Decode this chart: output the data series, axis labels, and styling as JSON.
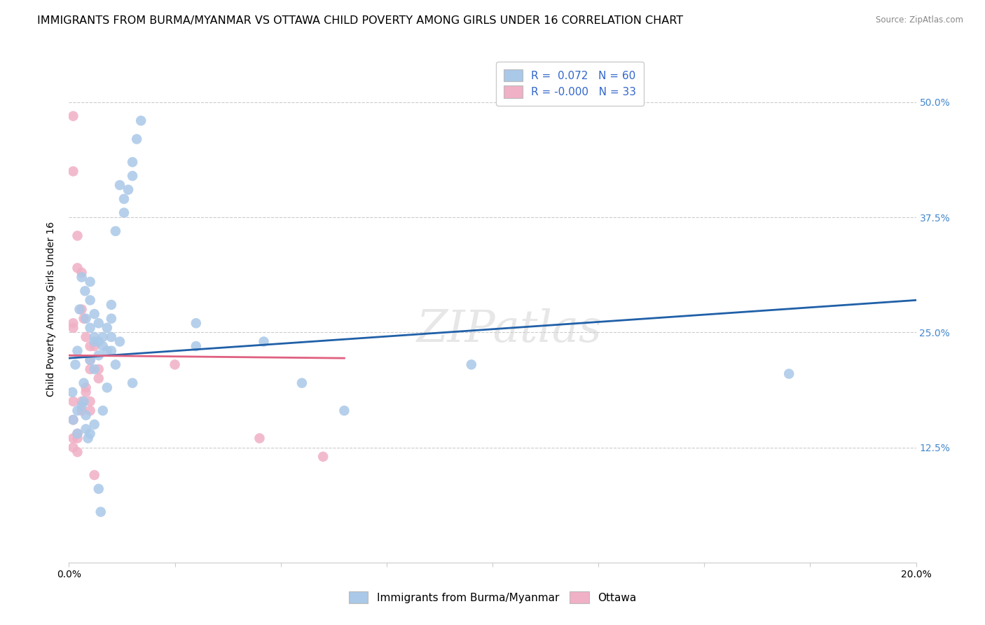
{
  "title": "IMMIGRANTS FROM BURMA/MYANMAR VS OTTAWA CHILD POVERTY AMONG GIRLS UNDER 16 CORRELATION CHART",
  "source": "Source: ZipAtlas.com",
  "ylabel": "Child Poverty Among Girls Under 16",
  "legend_label_blue": "Immigrants from Burma/Myanmar",
  "legend_label_pink": "Ottawa",
  "r_blue": 0.072,
  "n_blue": 60,
  "r_pink": -0.0,
  "n_pink": 33,
  "xlim": [
    0.0,
    0.2
  ],
  "ylim": [
    0.0,
    0.55
  ],
  "yticks": [
    0.0,
    0.125,
    0.25,
    0.375,
    0.5
  ],
  "ytick_labels": [
    "",
    "12.5%",
    "25.0%",
    "37.5%",
    "50.0%"
  ],
  "xticks": [
    0.0,
    0.025,
    0.05,
    0.075,
    0.1,
    0.125,
    0.15,
    0.175,
    0.2
  ],
  "xtick_labels": [
    "0.0%",
    "",
    "",
    "",
    "",
    "",
    "",
    "",
    "20.0%"
  ],
  "blue_dots": [
    [
      0.0008,
      0.185
    ],
    [
      0.0015,
      0.215
    ],
    [
      0.002,
      0.23
    ],
    [
      0.0025,
      0.275
    ],
    [
      0.003,
      0.31
    ],
    [
      0.0035,
      0.195
    ],
    [
      0.004,
      0.265
    ],
    [
      0.0038,
      0.295
    ],
    [
      0.005,
      0.22
    ],
    [
      0.005,
      0.255
    ],
    [
      0.005,
      0.285
    ],
    [
      0.005,
      0.305
    ],
    [
      0.006,
      0.21
    ],
    [
      0.006,
      0.24
    ],
    [
      0.006,
      0.245
    ],
    [
      0.006,
      0.27
    ],
    [
      0.007,
      0.225
    ],
    [
      0.007,
      0.24
    ],
    [
      0.007,
      0.26
    ],
    [
      0.008,
      0.235
    ],
    [
      0.008,
      0.245
    ],
    [
      0.009,
      0.23
    ],
    [
      0.009,
      0.255
    ],
    [
      0.01,
      0.265
    ],
    [
      0.01,
      0.28
    ],
    [
      0.011,
      0.36
    ],
    [
      0.012,
      0.41
    ],
    [
      0.013,
      0.38
    ],
    [
      0.013,
      0.395
    ],
    [
      0.014,
      0.405
    ],
    [
      0.015,
      0.42
    ],
    [
      0.015,
      0.435
    ],
    [
      0.016,
      0.46
    ],
    [
      0.017,
      0.48
    ],
    [
      0.001,
      0.155
    ],
    [
      0.002,
      0.14
    ],
    [
      0.002,
      0.165
    ],
    [
      0.003,
      0.17
    ],
    [
      0.0035,
      0.175
    ],
    [
      0.004,
      0.145
    ],
    [
      0.004,
      0.16
    ],
    [
      0.0045,
      0.135
    ],
    [
      0.005,
      0.14
    ],
    [
      0.006,
      0.15
    ],
    [
      0.007,
      0.08
    ],
    [
      0.0075,
      0.055
    ],
    [
      0.008,
      0.165
    ],
    [
      0.009,
      0.19
    ],
    [
      0.01,
      0.245
    ],
    [
      0.01,
      0.23
    ],
    [
      0.011,
      0.215
    ],
    [
      0.012,
      0.24
    ],
    [
      0.015,
      0.195
    ],
    [
      0.03,
      0.235
    ],
    [
      0.03,
      0.26
    ],
    [
      0.046,
      0.24
    ],
    [
      0.055,
      0.195
    ],
    [
      0.065,
      0.165
    ],
    [
      0.095,
      0.215
    ],
    [
      0.17,
      0.205
    ]
  ],
  "pink_dots": [
    [
      0.001,
      0.485
    ],
    [
      0.001,
      0.425
    ],
    [
      0.001,
      0.26
    ],
    [
      0.001,
      0.255
    ],
    [
      0.002,
      0.355
    ],
    [
      0.002,
      0.32
    ],
    [
      0.003,
      0.275
    ],
    [
      0.003,
      0.315
    ],
    [
      0.0035,
      0.265
    ],
    [
      0.004,
      0.245
    ],
    [
      0.005,
      0.235
    ],
    [
      0.005,
      0.22
    ],
    [
      0.005,
      0.21
    ],
    [
      0.006,
      0.235
    ],
    [
      0.001,
      0.175
    ],
    [
      0.001,
      0.155
    ],
    [
      0.001,
      0.135
    ],
    [
      0.001,
      0.125
    ],
    [
      0.002,
      0.14
    ],
    [
      0.002,
      0.135
    ],
    [
      0.002,
      0.12
    ],
    [
      0.003,
      0.175
    ],
    [
      0.003,
      0.165
    ],
    [
      0.004,
      0.19
    ],
    [
      0.004,
      0.185
    ],
    [
      0.005,
      0.175
    ],
    [
      0.005,
      0.165
    ],
    [
      0.006,
      0.095
    ],
    [
      0.007,
      0.2
    ],
    [
      0.007,
      0.21
    ],
    [
      0.025,
      0.215
    ],
    [
      0.045,
      0.135
    ],
    [
      0.06,
      0.115
    ]
  ],
  "blue_line_x": [
    0.0,
    0.2
  ],
  "blue_line_y": [
    0.222,
    0.285
  ],
  "pink_line_x": [
    0.0,
    0.065
  ],
  "pink_line_y": [
    0.225,
    0.222
  ],
  "dot_size": 110,
  "blue_color": "#aac8e8",
  "pink_color": "#f0b0c5",
  "blue_line_color": "#2060a8",
  "pink_line_color": "#e06080",
  "grid_color": "#cccccc",
  "background_color": "#ffffff",
  "title_fontsize": 11.5,
  "axis_label_fontsize": 10,
  "tick_fontsize": 10,
  "legend_fontsize": 11,
  "right_tick_color": "#4488cc"
}
